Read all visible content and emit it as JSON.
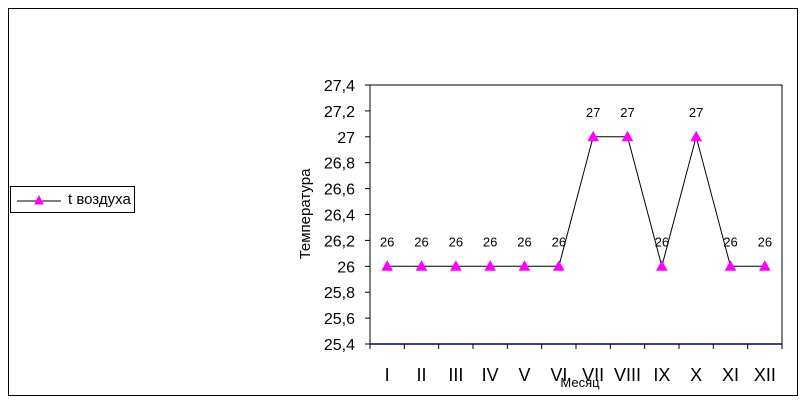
{
  "chart_data": {
    "type": "line",
    "title": "",
    "xlabel": "Месяц",
    "ylabel": "Температура",
    "categories": [
      "I",
      "II",
      "III",
      "IV",
      "V",
      "VI",
      "VII",
      "VIII",
      "IX",
      "X",
      "XI",
      "XII"
    ],
    "series": [
      {
        "name": "t воздуха",
        "values": [
          26,
          26,
          26,
          26,
          26,
          26,
          27,
          27,
          26,
          27,
          26,
          26
        ],
        "data_labels": [
          "26",
          "26",
          "26",
          "26",
          "26",
          "26",
          "27",
          "27",
          "26",
          "27",
          "26",
          "26"
        ],
        "color": "#ff00ff",
        "line_color": "#000000",
        "marker": "triangle"
      }
    ],
    "ylim": [
      25.4,
      27.4
    ],
    "y_ticks": [
      "25,4",
      "25,6",
      "25,8",
      "26",
      "26,2",
      "26,4",
      "26,6",
      "26,8",
      "27",
      "27,2",
      "27,4"
    ],
    "y_tick_values": [
      25.4,
      25.6,
      25.8,
      26,
      26.2,
      26.4,
      26.6,
      26.8,
      27,
      27.2,
      27.4
    ],
    "grid": false,
    "legend": "left",
    "axis_color": "#000080"
  }
}
